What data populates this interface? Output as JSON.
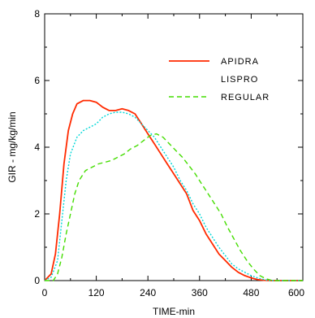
{
  "chart_data": {
    "type": "line",
    "title": "",
    "xlabel": "TIME-min",
    "ylabel": "GIR - mg/kg/min",
    "xlim": [
      0,
      600
    ],
    "ylim": [
      0,
      8
    ],
    "xticks": [
      0,
      120,
      240,
      360,
      480,
      600
    ],
    "yticks": [
      0,
      2,
      4,
      6,
      8
    ],
    "grid": false,
    "legend_position": "top-right",
    "series": [
      {
        "name": "APIDRA",
        "color": "#ff2a00",
        "dash": "solid",
        "points": [
          [
            0,
            0
          ],
          [
            15,
            0.2
          ],
          [
            25,
            0.8
          ],
          [
            35,
            2.0
          ],
          [
            45,
            3.5
          ],
          [
            55,
            4.5
          ],
          [
            65,
            5.0
          ],
          [
            75,
            5.3
          ],
          [
            90,
            5.4
          ],
          [
            105,
            5.4
          ],
          [
            120,
            5.35
          ],
          [
            135,
            5.2
          ],
          [
            150,
            5.1
          ],
          [
            165,
            5.1
          ],
          [
            180,
            5.15
          ],
          [
            195,
            5.1
          ],
          [
            210,
            5.0
          ],
          [
            225,
            4.7
          ],
          [
            240,
            4.4
          ],
          [
            255,
            4.1
          ],
          [
            270,
            3.8
          ],
          [
            285,
            3.5
          ],
          [
            300,
            3.2
          ],
          [
            315,
            2.9
          ],
          [
            330,
            2.6
          ],
          [
            345,
            2.1
          ],
          [
            360,
            1.8
          ],
          [
            375,
            1.4
          ],
          [
            390,
            1.1
          ],
          [
            405,
            0.8
          ],
          [
            420,
            0.6
          ],
          [
            435,
            0.4
          ],
          [
            450,
            0.25
          ],
          [
            465,
            0.15
          ],
          [
            480,
            0.08
          ],
          [
            495,
            0.03
          ],
          [
            510,
            0.01
          ],
          [
            525,
            0
          ],
          [
            600,
            0
          ]
        ]
      },
      {
        "name": "LISPRO",
        "color": "#00d8d8",
        "dash": "dotted",
        "points": [
          [
            0,
            0
          ],
          [
            15,
            0.1
          ],
          [
            30,
            0.6
          ],
          [
            40,
            1.8
          ],
          [
            50,
            3.0
          ],
          [
            60,
            3.8
          ],
          [
            75,
            4.3
          ],
          [
            90,
            4.5
          ],
          [
            105,
            4.6
          ],
          [
            120,
            4.7
          ],
          [
            135,
            4.9
          ],
          [
            150,
            5.0
          ],
          [
            165,
            5.05
          ],
          [
            180,
            5.05
          ],
          [
            195,
            5.0
          ],
          [
            210,
            4.9
          ],
          [
            225,
            4.7
          ],
          [
            240,
            4.5
          ],
          [
            255,
            4.3
          ],
          [
            270,
            4.0
          ],
          [
            285,
            3.7
          ],
          [
            300,
            3.4
          ],
          [
            315,
            3.0
          ],
          [
            330,
            2.7
          ],
          [
            345,
            2.3
          ],
          [
            360,
            2.0
          ],
          [
            375,
            1.6
          ],
          [
            390,
            1.3
          ],
          [
            405,
            1.0
          ],
          [
            420,
            0.75
          ],
          [
            435,
            0.5
          ],
          [
            450,
            0.35
          ],
          [
            465,
            0.25
          ],
          [
            480,
            0.15
          ],
          [
            495,
            0.08
          ],
          [
            510,
            0.03
          ],
          [
            525,
            0
          ],
          [
            600,
            0
          ]
        ]
      },
      {
        "name": "REGULAR",
        "color": "#44dd00",
        "dash": "dashed",
        "points": [
          [
            0,
            0
          ],
          [
            20,
            0
          ],
          [
            30,
            0.2
          ],
          [
            40,
            0.7
          ],
          [
            50,
            1.4
          ],
          [
            60,
            2.0
          ],
          [
            70,
            2.6
          ],
          [
            80,
            3.0
          ],
          [
            95,
            3.3
          ],
          [
            110,
            3.4
          ],
          [
            125,
            3.5
          ],
          [
            140,
            3.55
          ],
          [
            155,
            3.6
          ],
          [
            170,
            3.7
          ],
          [
            185,
            3.8
          ],
          [
            200,
            3.95
          ],
          [
            215,
            4.05
          ],
          [
            230,
            4.2
          ],
          [
            245,
            4.35
          ],
          [
            260,
            4.4
          ],
          [
            275,
            4.3
          ],
          [
            290,
            4.1
          ],
          [
            305,
            3.9
          ],
          [
            320,
            3.7
          ],
          [
            335,
            3.45
          ],
          [
            350,
            3.2
          ],
          [
            365,
            2.9
          ],
          [
            380,
            2.6
          ],
          [
            395,
            2.3
          ],
          [
            410,
            2.0
          ],
          [
            425,
            1.6
          ],
          [
            440,
            1.25
          ],
          [
            455,
            0.9
          ],
          [
            470,
            0.6
          ],
          [
            485,
            0.35
          ],
          [
            500,
            0.15
          ],
          [
            515,
            0.05
          ],
          [
            530,
            0
          ],
          [
            600,
            0
          ]
        ]
      }
    ]
  }
}
